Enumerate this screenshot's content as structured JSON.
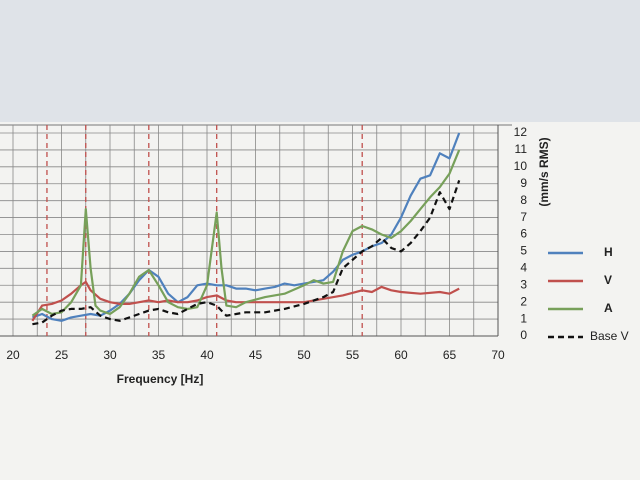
{
  "chart_data": {
    "type": "line",
    "x_label": "Frequency [Hz]",
    "y_label": "(mm/s RMS)",
    "xlim": [
      20,
      70
    ],
    "xticks": [
      20,
      25,
      30,
      35,
      40,
      45,
      50,
      55,
      60,
      65,
      70
    ],
    "ylim": [
      0,
      12
    ],
    "yticks": [
      0,
      1,
      2,
      3,
      4,
      5,
      6,
      7,
      8,
      9,
      10,
      11,
      12
    ],
    "grid": true,
    "vlines": [
      23.5,
      27.5,
      34,
      41,
      56
    ],
    "vline_color": "#c0504d",
    "series": [
      {
        "name": "H",
        "color": "#4f81bd",
        "dash": false,
        "x": [
          22,
          23,
          24,
          25,
          26,
          27,
          28,
          29,
          30,
          31,
          32,
          33,
          34,
          35,
          36,
          37,
          38,
          39,
          40,
          41,
          42,
          43,
          44,
          45,
          46,
          47,
          48,
          49,
          50,
          51,
          52,
          53,
          54,
          55,
          56,
          57,
          58,
          59,
          60,
          61,
          62,
          63,
          64,
          65,
          66
        ],
        "values": [
          1.1,
          1.3,
          1.0,
          0.9,
          1.1,
          1.2,
          1.3,
          1.2,
          1.5,
          1.9,
          2.5,
          3.3,
          3.9,
          3.5,
          2.5,
          2.0,
          2.3,
          3.0,
          3.1,
          3.0,
          3.0,
          2.8,
          2.8,
          2.7,
          2.8,
          2.9,
          3.1,
          3.0,
          3.1,
          3.2,
          3.3,
          3.8,
          4.5,
          4.8,
          5.0,
          5.3,
          5.5,
          6.0,
          7.0,
          8.3,
          9.3,
          9.5,
          10.8,
          10.5,
          12.0
        ]
      },
      {
        "name": "V",
        "color": "#c0504d",
        "dash": false,
        "x": [
          22,
          23,
          24,
          25,
          26,
          27,
          27.5,
          28,
          29,
          30,
          31,
          32,
          33,
          34,
          35,
          36,
          37,
          38,
          39,
          40,
          41,
          42,
          43,
          44,
          46,
          48,
          50,
          52,
          54,
          56,
          57,
          58,
          59,
          60,
          62,
          64,
          65,
          66
        ],
        "values": [
          0.9,
          1.8,
          1.9,
          2.1,
          2.5,
          3.0,
          3.2,
          2.7,
          2.2,
          2.0,
          1.9,
          1.9,
          2.0,
          2.1,
          2.0,
          2.1,
          2.0,
          2.0,
          2.1,
          2.3,
          2.4,
          2.1,
          2.0,
          2.0,
          2.0,
          2.0,
          2.0,
          2.2,
          2.4,
          2.7,
          2.6,
          2.9,
          2.7,
          2.6,
          2.5,
          2.6,
          2.5,
          2.8
        ]
      },
      {
        "name": "A",
        "color": "#77a05a",
        "dash": false,
        "x": [
          22,
          23,
          24,
          25,
          26,
          27,
          27.5,
          28,
          28.5,
          29,
          30,
          31,
          32,
          33,
          34,
          35,
          36,
          37,
          38,
          39,
          40,
          41,
          41.5,
          42,
          43,
          44,
          46,
          48,
          50,
          51,
          52,
          53,
          54,
          55,
          56,
          57,
          58,
          59,
          60,
          61,
          62,
          63,
          64,
          65,
          66
        ],
        "values": [
          1.2,
          1.6,
          1.3,
          1.4,
          2.0,
          3.0,
          7.5,
          4.0,
          1.8,
          1.5,
          1.3,
          1.7,
          2.5,
          3.5,
          3.9,
          3.0,
          2.0,
          1.7,
          1.6,
          1.7,
          3.0,
          7.3,
          4.0,
          1.8,
          1.7,
          2.0,
          2.3,
          2.5,
          3.0,
          3.3,
          3.1,
          3.2,
          5.0,
          6.2,
          6.5,
          6.3,
          6.0,
          5.8,
          6.2,
          6.8,
          7.5,
          8.2,
          8.8,
          9.6,
          11.0
        ]
      },
      {
        "name": "Base V",
        "color": "#111111",
        "dash": true,
        "x": [
          22,
          23,
          24,
          25,
          26,
          27,
          28,
          29,
          30,
          31,
          32,
          33,
          34,
          35,
          36,
          37,
          38,
          39,
          40,
          41,
          42,
          43,
          44,
          46,
          48,
          50,
          52,
          53,
          54,
          55,
          56,
          57,
          58,
          59,
          60,
          61,
          62,
          63,
          64,
          65,
          66
        ],
        "values": [
          0.7,
          0.8,
          1.2,
          1.5,
          1.6,
          1.6,
          1.7,
          1.2,
          1.0,
          0.9,
          1.1,
          1.3,
          1.5,
          1.6,
          1.4,
          1.3,
          1.6,
          1.9,
          2.0,
          1.8,
          1.2,
          1.3,
          1.4,
          1.4,
          1.6,
          1.9,
          2.3,
          2.6,
          4.0,
          4.5,
          5.0,
          5.3,
          5.8,
          5.2,
          5.0,
          5.5,
          6.2,
          7.0,
          8.5,
          7.5,
          9.2
        ]
      }
    ]
  }
}
